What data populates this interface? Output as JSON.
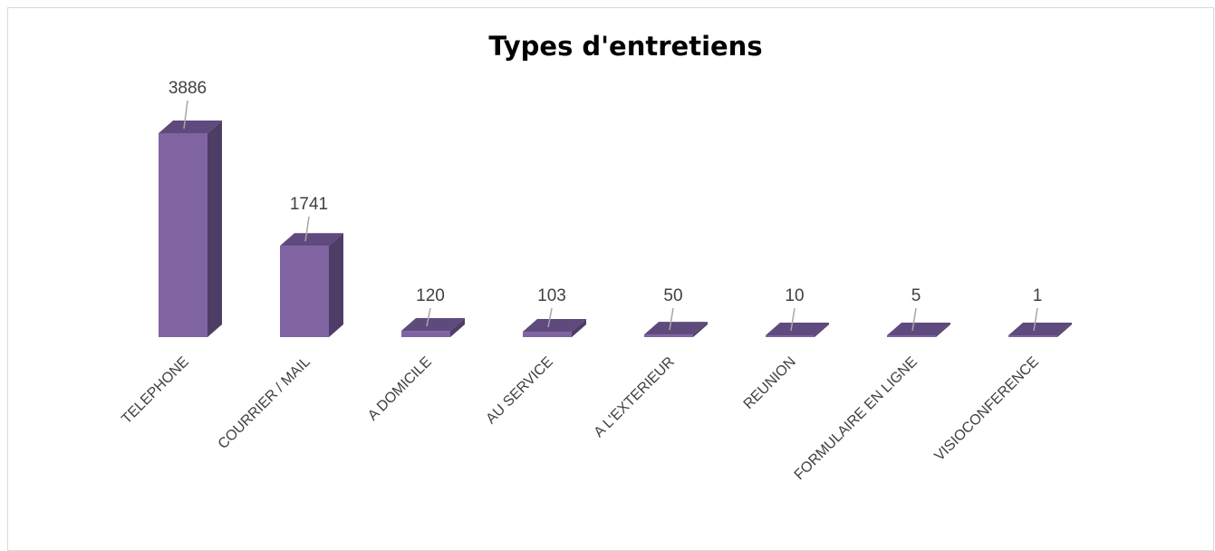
{
  "chart_data": {
    "type": "bar",
    "title": "Types d'entretiens",
    "categories": [
      "TELEPHONE",
      "COURRIER / MAIL",
      "A DOMICILE",
      "AU SERVICE",
      "A L'EXTERIEUR",
      "REUNION",
      "FORMULAIRE EN LIGNE",
      "VISIOCONFERENCE"
    ],
    "values": [
      3886,
      1741,
      120,
      103,
      50,
      10,
      5,
      1
    ],
    "data_labels_shown": true,
    "legend": "none",
    "grid": false,
    "style": "3d-column",
    "colors": {
      "front": "#8064a2",
      "side": "#4e3d66",
      "top": "#5f4a7d",
      "label": "#404040",
      "leader": "#a6a6a6"
    }
  }
}
